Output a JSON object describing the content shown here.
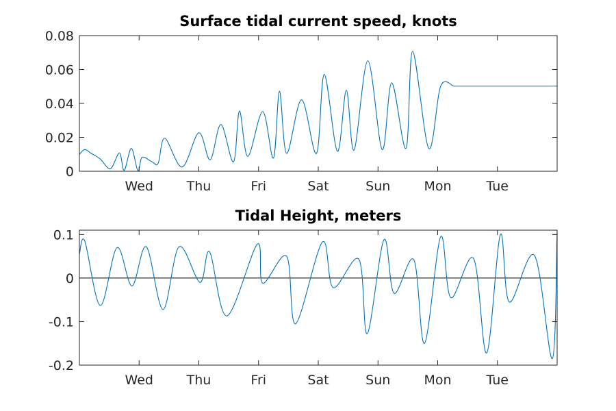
{
  "colors": {
    "series": "#0072BD",
    "axis": "#262626",
    "zero_line": "#000000",
    "background": "#FFFFFF"
  },
  "chart_data": [
    {
      "type": "line",
      "title": "Surface tidal current speed, knots",
      "xlabel": "",
      "ylabel": "",
      "xlim": [
        0,
        8
      ],
      "ylim": [
        0,
        0.08
      ],
      "x_ticks": [
        1,
        2,
        3,
        4,
        5,
        6,
        7
      ],
      "x_tick_labels": [
        "Wed",
        "Thu",
        "Fri",
        "Sat",
        "Sun",
        "Mon",
        "Tue"
      ],
      "y_ticks": [
        0,
        0.02,
        0.04,
        0.06,
        0.08
      ],
      "y_tick_labels": [
        "0",
        "0.02",
        "0.04",
        "0.06",
        "0.08"
      ],
      "grid": false,
      "series": [
        {
          "x": [
            0,
            0.09,
            0.2,
            0.35,
            0.52,
            0.67,
            0.75,
            0.87,
            0.98,
            1.05,
            1.22,
            1.32,
            1.43,
            1.72,
            2.0,
            2.19,
            2.37,
            2.58,
            2.68,
            2.82,
            3.07,
            3.25,
            3.35,
            3.47,
            3.72,
            3.97,
            4.1,
            4.32,
            4.47,
            4.6,
            4.83,
            5.07,
            5.23,
            5.47,
            5.58,
            5.85,
            6.05,
            6.27,
            6.33,
            6.6,
            6.87,
            7.03,
            7.3,
            7.46,
            7.62,
            7.79,
            8.0
          ],
          "y": [
            0.01,
            0.0128,
            0.0105,
            0.0072,
            0.0015,
            0.0108,
            0.0005,
            0.0135,
            0.0002,
            0.0082,
            0.0055,
            0.0048,
            0.0195,
            0.0025,
            0.0227,
            0.0068,
            0.0276,
            0.0055,
            0.0355,
            0.0088,
            0.0352,
            0.0078,
            0.0472,
            0.0105,
            0.0422,
            0.0105,
            0.0572,
            0.0118,
            0.0478,
            0.0125,
            0.0652,
            0.0128,
            0.0522,
            0.0135,
            0.0708,
            0.0135,
            0.0502,
            0.0502,
            0.0502,
            0.0502,
            0.0502,
            0.0502,
            0.0502,
            0.0502,
            0.0502,
            0.0502,
            0.0502
          ]
        }
      ]
    },
    {
      "type": "line",
      "title": "Tidal Height, meters",
      "xlabel": "",
      "ylabel": "",
      "xlim": [
        0,
        8
      ],
      "ylim": [
        -0.2,
        0.11
      ],
      "x_ticks": [
        1,
        2,
        3,
        4,
        5,
        6,
        7
      ],
      "x_tick_labels": [
        "Wed",
        "Thu",
        "Fri",
        "Sat",
        "Sun",
        "Mon",
        "Tue"
      ],
      "y_ticks": [
        -0.2,
        -0.1,
        0,
        0.1
      ],
      "y_tick_labels": [
        "-0.2",
        "-0.1",
        "0",
        "0.1"
      ],
      "grid": false,
      "zero_line": true,
      "series": [
        {
          "x": [
            0,
            0.09,
            0.35,
            0.63,
            0.88,
            1.12,
            1.4,
            1.67,
            2.02,
            2.18,
            2.47,
            2.98,
            3.07,
            3.47,
            3.62,
            4.07,
            4.25,
            4.68,
            4.82,
            5.1,
            5.27,
            5.6,
            5.78,
            6.05,
            6.22,
            6.6,
            6.82,
            7.05,
            7.2,
            7.62,
            7.92,
            8.0
          ],
          "y": [
            0.055,
            0.085,
            -0.063,
            0.07,
            -0.018,
            0.072,
            -0.072,
            0.072,
            -0.01,
            0.06,
            -0.087,
            0.078,
            -0.012,
            0.05,
            -0.105,
            0.083,
            -0.022,
            0.043,
            -0.128,
            0.088,
            -0.035,
            0.042,
            -0.15,
            0.095,
            -0.045,
            0.045,
            -0.172,
            0.1,
            -0.055,
            0.052,
            -0.185,
            0.11
          ]
        }
      ]
    }
  ]
}
